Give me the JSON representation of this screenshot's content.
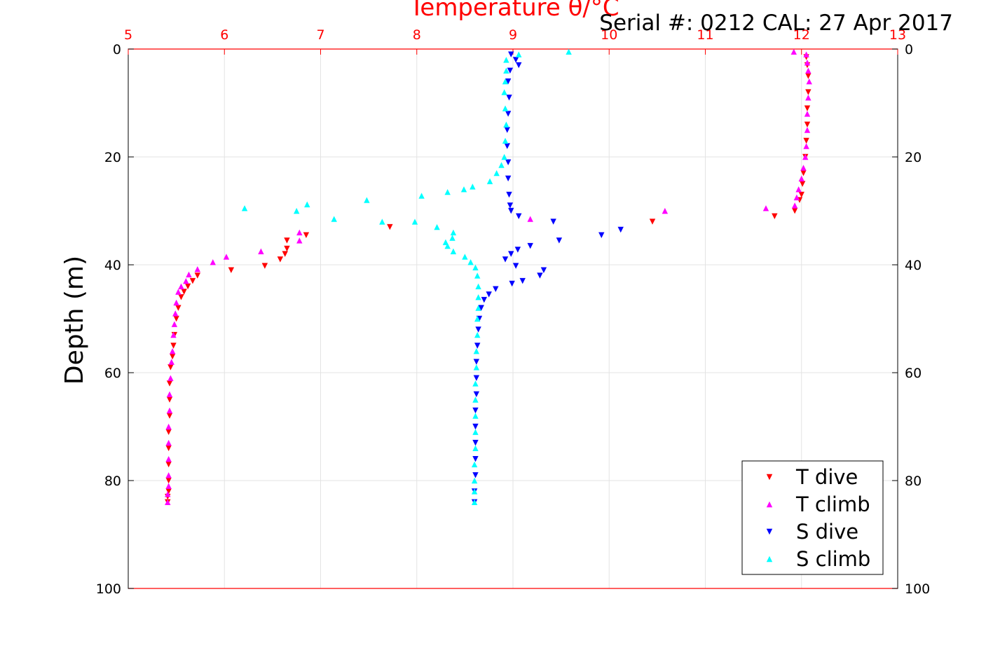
{
  "chart_data": {
    "type": "scatter",
    "title": "Temperature θ/°C",
    "subtitle": "Serial #: 0212  CAL: 27 Apr 2017",
    "xlabel": "Temperature θ/°C",
    "ylabel": "Depth (m)",
    "xlim": [
      5,
      13
    ],
    "ylim": [
      0,
      100
    ],
    "y_reversed": true,
    "x_ticks": [
      5,
      6,
      7,
      8,
      9,
      10,
      11,
      12,
      13
    ],
    "y_ticks": [
      0,
      20,
      40,
      60,
      80,
      100
    ],
    "grid": true,
    "legend_position": "bottom-right",
    "colors": {
      "temperature_axis": "#ff0000",
      "t_dive": "#ff0000",
      "t_climb": "#ff00ff",
      "s_dive": "#0000ff",
      "s_climb": "#00ffff"
    },
    "series": [
      {
        "name": "T dive",
        "marker": "triangle-down",
        "color": "#ff0000",
        "points": [
          [
            12.05,
            1.5
          ],
          [
            12.06,
            3
          ],
          [
            12.07,
            5
          ],
          [
            12.07,
            8
          ],
          [
            12.06,
            11
          ],
          [
            12.06,
            14
          ],
          [
            12.05,
            17
          ],
          [
            12.04,
            20
          ],
          [
            12.02,
            23
          ],
          [
            12.01,
            25
          ],
          [
            12.0,
            27
          ],
          [
            11.98,
            28
          ],
          [
            11.93,
            30
          ],
          [
            11.72,
            31
          ],
          [
            10.45,
            32
          ],
          [
            7.72,
            33
          ],
          [
            6.85,
            34.5
          ],
          [
            6.65,
            35.5
          ],
          [
            6.65,
            37
          ],
          [
            6.63,
            38
          ],
          [
            6.58,
            39
          ],
          [
            6.42,
            40.2
          ],
          [
            6.07,
            41
          ],
          [
            5.72,
            42
          ],
          [
            5.67,
            43
          ],
          [
            5.62,
            44
          ],
          [
            5.58,
            45
          ],
          [
            5.55,
            46
          ],
          [
            5.52,
            48
          ],
          [
            5.5,
            50
          ],
          [
            5.48,
            53
          ],
          [
            5.47,
            55
          ],
          [
            5.46,
            57
          ],
          [
            5.44,
            59
          ],
          [
            5.43,
            62
          ],
          [
            5.43,
            65
          ],
          [
            5.43,
            68
          ],
          [
            5.42,
            71
          ],
          [
            5.42,
            74
          ],
          [
            5.42,
            77
          ],
          [
            5.42,
            80
          ],
          [
            5.42,
            82
          ],
          [
            5.41,
            83
          ],
          [
            5.41,
            84
          ]
        ]
      },
      {
        "name": "T climb",
        "marker": "triangle-up",
        "color": "#ff00ff",
        "points": [
          [
            11.92,
            0.5
          ],
          [
            12.05,
            1
          ],
          [
            12.06,
            2.5
          ],
          [
            12.07,
            4
          ],
          [
            12.08,
            6
          ],
          [
            12.07,
            9
          ],
          [
            12.06,
            12
          ],
          [
            12.06,
            15
          ],
          [
            12.05,
            18
          ],
          [
            12.04,
            20
          ],
          [
            12.02,
            22
          ],
          [
            12.0,
            24
          ],
          [
            11.97,
            26
          ],
          [
            11.95,
            27.5
          ],
          [
            11.93,
            29
          ],
          [
            11.63,
            29.5
          ],
          [
            10.58,
            30
          ],
          [
            9.18,
            31.5
          ],
          [
            6.78,
            34
          ],
          [
            6.78,
            35.5
          ],
          [
            6.38,
            37.5
          ],
          [
            6.02,
            38.5
          ],
          [
            5.88,
            39.5
          ],
          [
            5.72,
            40.8
          ],
          [
            5.63,
            41.8
          ],
          [
            5.6,
            43
          ],
          [
            5.55,
            44
          ],
          [
            5.52,
            45
          ],
          [
            5.5,
            47
          ],
          [
            5.49,
            49
          ],
          [
            5.48,
            51
          ],
          [
            5.47,
            53
          ],
          [
            5.46,
            56
          ],
          [
            5.45,
            58
          ],
          [
            5.44,
            61
          ],
          [
            5.43,
            64
          ],
          [
            5.43,
            67
          ],
          [
            5.42,
            70
          ],
          [
            5.42,
            73
          ],
          [
            5.42,
            76
          ],
          [
            5.42,
            79
          ],
          [
            5.42,
            81
          ],
          [
            5.41,
            82.5
          ],
          [
            5.41,
            84
          ]
        ]
      },
      {
        "name": "S dive",
        "marker": "triangle-down",
        "color": "#0000ff",
        "points": [
          [
            8.98,
            1
          ],
          [
            9.03,
            2
          ],
          [
            9.06,
            3
          ],
          [
            8.97,
            4
          ],
          [
            8.95,
            6
          ],
          [
            8.96,
            9
          ],
          [
            8.95,
            12
          ],
          [
            8.94,
            15
          ],
          [
            8.94,
            18
          ],
          [
            8.95,
            21
          ],
          [
            8.95,
            24
          ],
          [
            8.96,
            27
          ],
          [
            8.97,
            29
          ],
          [
            8.98,
            30
          ],
          [
            9.06,
            31
          ],
          [
            9.42,
            32
          ],
          [
            10.12,
            33.5
          ],
          [
            9.92,
            34.5
          ],
          [
            9.48,
            35.5
          ],
          [
            9.18,
            36.5
          ],
          [
            9.05,
            37.2
          ],
          [
            8.98,
            38
          ],
          [
            8.92,
            39
          ],
          [
            9.03,
            40.2
          ],
          [
            9.32,
            41
          ],
          [
            9.28,
            42
          ],
          [
            9.1,
            43
          ],
          [
            8.99,
            43.5
          ],
          [
            8.82,
            44.5
          ],
          [
            8.75,
            45.5
          ],
          [
            8.7,
            46.5
          ],
          [
            8.67,
            48
          ],
          [
            8.65,
            50
          ],
          [
            8.64,
            52
          ],
          [
            8.63,
            55
          ],
          [
            8.62,
            58
          ],
          [
            8.62,
            61
          ],
          [
            8.62,
            64
          ],
          [
            8.61,
            67
          ],
          [
            8.61,
            70
          ],
          [
            8.61,
            73
          ],
          [
            8.61,
            76
          ],
          [
            8.61,
            79
          ],
          [
            8.6,
            82
          ],
          [
            8.6,
            84
          ]
        ]
      },
      {
        "name": "S climb",
        "marker": "triangle-up",
        "color": "#00ffff",
        "points": [
          [
            9.58,
            0.5
          ],
          [
            9.06,
            1
          ],
          [
            8.93,
            2
          ],
          [
            8.93,
            4
          ],
          [
            8.92,
            6
          ],
          [
            8.91,
            8
          ],
          [
            8.92,
            11
          ],
          [
            8.93,
            14
          ],
          [
            8.92,
            17
          ],
          [
            8.91,
            20
          ],
          [
            8.88,
            21.5
          ],
          [
            8.83,
            23
          ],
          [
            8.76,
            24.5
          ],
          [
            8.58,
            25.5
          ],
          [
            8.49,
            26
          ],
          [
            8.32,
            26.5
          ],
          [
            8.05,
            27.2
          ],
          [
            7.48,
            28
          ],
          [
            6.86,
            28.8
          ],
          [
            6.21,
            29.5
          ],
          [
            6.75,
            30
          ],
          [
            7.14,
            31.5
          ],
          [
            7.64,
            32
          ],
          [
            7.98,
            32
          ],
          [
            8.21,
            33
          ],
          [
            8.38,
            34
          ],
          [
            8.37,
            35
          ],
          [
            8.3,
            35.8
          ],
          [
            8.32,
            36.5
          ],
          [
            8.38,
            37.5
          ],
          [
            8.5,
            38.5
          ],
          [
            8.56,
            39.5
          ],
          [
            8.61,
            40.5
          ],
          [
            8.63,
            42
          ],
          [
            8.64,
            44
          ],
          [
            8.64,
            46
          ],
          [
            8.64,
            48
          ],
          [
            8.63,
            50
          ],
          [
            8.63,
            53
          ],
          [
            8.62,
            56
          ],
          [
            8.62,
            59
          ],
          [
            8.61,
            62
          ],
          [
            8.61,
            65
          ],
          [
            8.61,
            68
          ],
          [
            8.61,
            71
          ],
          [
            8.61,
            74
          ],
          [
            8.6,
            77
          ],
          [
            8.6,
            80
          ],
          [
            8.6,
            82
          ],
          [
            8.6,
            84
          ]
        ]
      }
    ]
  }
}
